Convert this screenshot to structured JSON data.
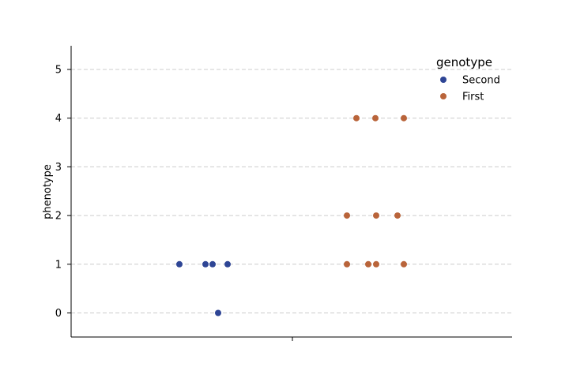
{
  "chart_data": {
    "type": "scatter",
    "title": "",
    "xlabel": "",
    "ylabel": "phenotype",
    "ylim": [
      -0.5,
      5.5
    ],
    "yticks": [
      0,
      1,
      2,
      3,
      4,
      5
    ],
    "grid": "horizontal dashed",
    "legend": {
      "title": "genotype",
      "placement": "top-right"
    },
    "series": [
      {
        "name": "Second",
        "color": "#2e4595",
        "values": [
          1,
          1,
          1,
          1,
          0
        ]
      },
      {
        "name": "First",
        "color": "#b9643a",
        "values": [
          4,
          4,
          4,
          2,
          2,
          2,
          1,
          1,
          1,
          1
        ]
      }
    ]
  }
}
